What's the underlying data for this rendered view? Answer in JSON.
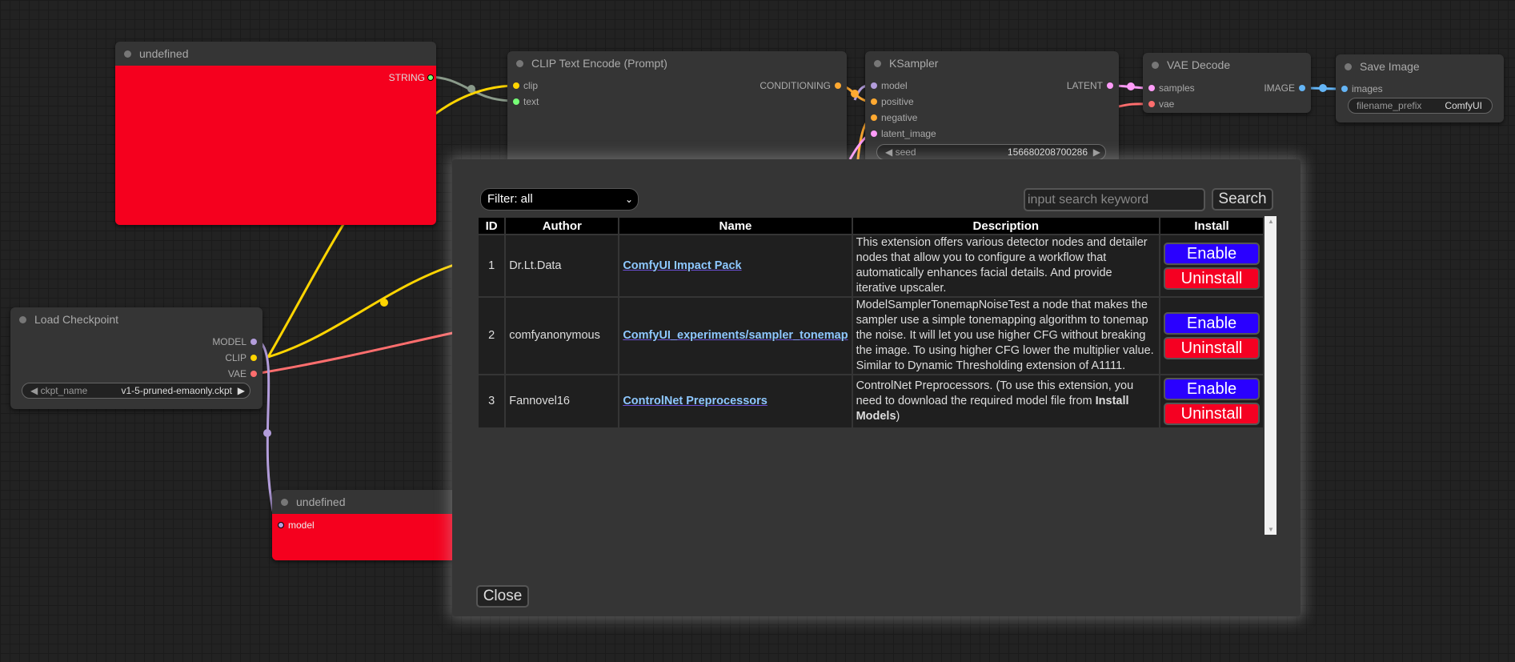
{
  "nodes": {
    "undefined_top": {
      "title": "undefined",
      "outputs": [
        "STRING"
      ]
    },
    "clip_text_encode": {
      "title": "CLIP Text Encode (Prompt)",
      "inputs": [
        "clip",
        "text"
      ],
      "outputs": [
        "CONDITIONING"
      ]
    },
    "ksampler": {
      "title": "KSampler",
      "inputs": [
        "model",
        "positive",
        "negative",
        "latent_image"
      ],
      "outputs": [
        "LATENT"
      ],
      "seed_label": "seed",
      "seed_value": "156680208700286"
    },
    "vae_decode": {
      "title": "VAE Decode",
      "inputs": [
        "samples",
        "vae"
      ],
      "outputs": [
        "IMAGE"
      ]
    },
    "save_image": {
      "title": "Save Image",
      "inputs": [
        "images"
      ],
      "prefix_label": "filename_prefix",
      "prefix_value": "ComfyUI"
    },
    "load_checkpoint": {
      "title": "Load Checkpoint",
      "outputs": [
        "MODEL",
        "CLIP",
        "VAE"
      ],
      "ckpt_label": "ckpt_name",
      "ckpt_value": "v1-5-pruned-emaonly.ckpt"
    },
    "undefined_bottom": {
      "title": "undefined",
      "inputs": [
        "model"
      ]
    }
  },
  "dialog": {
    "filter": "Filter: all",
    "search_placeholder": "input search keyword",
    "search_label": "Search",
    "columns": [
      "ID",
      "Author",
      "Name",
      "Description",
      "Install"
    ],
    "rows": [
      {
        "id": "1",
        "author": "Dr.Lt.Data",
        "name": "ComfyUI Impact Pack",
        "description": "This extension offers various detector nodes and detailer nodes that allow you to configure a workflow that automatically enhances facial details. And provide iterative upscaler.",
        "enable": "Enable",
        "uninstall": "Uninstall"
      },
      {
        "id": "2",
        "author": "comfyanonymous",
        "name": "ComfyUI_experiments/sampler_tonemap",
        "description": "ModelSamplerTonemapNoiseTest a node that makes the sampler use a simple tonemapping algorithm to tonemap the noise. It will let you use higher CFG without breaking the image. To using higher CFG lower the multiplier value. Similar to Dynamic Thresholding extension of A1111.",
        "enable": "Enable",
        "uninstall": "Uninstall"
      },
      {
        "id": "3",
        "author": "Fannovel16",
        "name": "ControlNet Preprocessors",
        "description": "ControlNet Preprocessors. (To use this extension, you need to download the required model file from ",
        "description_bold": "Install Models",
        "description_end": ")",
        "enable": "Enable",
        "uninstall": "Uninstall"
      }
    ],
    "close_label": "Close"
  },
  "colors": {
    "enable": "#2a00ff",
    "uninstall": "#f50022",
    "node_red": "#f5001e",
    "clip": "#ffd500",
    "conditioning": "#ffa931",
    "model": "#b39ddb",
    "latent": "#ff9cf9",
    "vae": "#ff6e6e",
    "image": "#64b5f6",
    "string": "#77ff77"
  }
}
